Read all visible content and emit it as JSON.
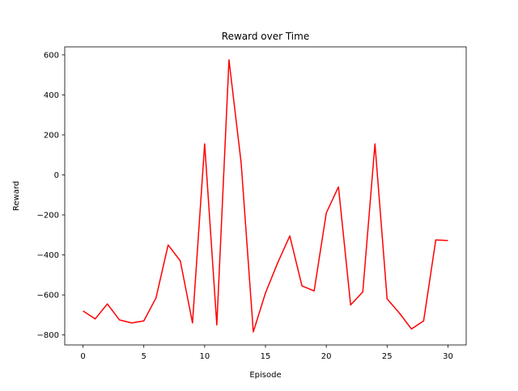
{
  "chart_data": {
    "type": "line",
    "title": "Reward over Time",
    "xlabel": "Episode",
    "ylabel": "Reward",
    "xlim": [
      -1.5,
      31.5
    ],
    "ylim": [
      -850,
      640
    ],
    "xticks": [
      0,
      5,
      10,
      15,
      20,
      25,
      30
    ],
    "yticks": [
      -800,
      -600,
      -400,
      -200,
      0,
      200,
      400,
      600
    ],
    "grid": false,
    "legend": null,
    "series": [
      {
        "color": "#ff0000",
        "x": [
          0,
          1,
          2,
          3,
          4,
          5,
          6,
          7,
          8,
          9,
          10,
          11,
          12,
          13,
          14,
          15,
          16,
          17,
          18,
          19,
          20,
          21,
          22,
          23,
          24,
          25,
          26,
          27,
          28,
          29,
          30
        ],
        "values": [
          -680,
          -720,
          -645,
          -725,
          -740,
          -730,
          -615,
          -350,
          -430,
          -740,
          155,
          -750,
          575,
          60,
          -785,
          -590,
          -440,
          -305,
          -555,
          -580,
          -190,
          -60,
          -650,
          -585,
          155,
          -620,
          -690,
          -770,
          -730,
          -325,
          -328
        ]
      }
    ]
  }
}
